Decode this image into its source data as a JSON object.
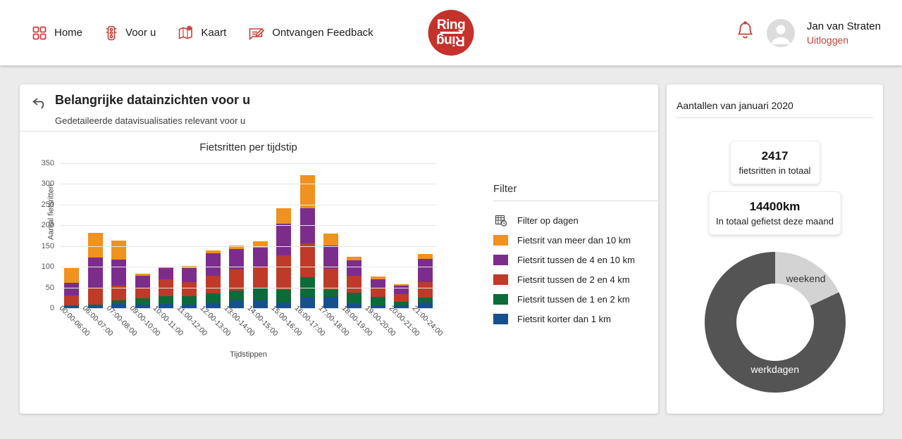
{
  "colors": {
    "accent_red": "#c8413b",
    "logo_red": "#c5312b",
    "donut_weekend": "#d3d3d3",
    "donut_werkdagen": "#545454"
  },
  "header": {
    "nav": [
      {
        "icon": "dashboard-icon",
        "label": "Home"
      },
      {
        "icon": "traffic-light-icon",
        "label": "Voor u"
      },
      {
        "icon": "map-icon",
        "label": "Kaart"
      },
      {
        "icon": "feedback-icon",
        "label": "Ontvangen Feedback"
      }
    ],
    "logo_line1": "Ring",
    "logo_line2": "Ring",
    "user_name": "Jan van Straten",
    "logout_label": "Uitloggen"
  },
  "main": {
    "title": "Belangrijke datainzichten voor u",
    "subtitle": "Gedetaileerde datavisualisaties relevant voor u",
    "filter": {
      "title": "Filter",
      "day_filter_label": "Filter op dagen"
    }
  },
  "sidebar": {
    "title": "Aantallen van januari 2020",
    "stats": [
      {
        "value": "2417",
        "label": "fietsritten in totaal"
      },
      {
        "value": "14400km",
        "label": "In totaal gefietst deze maand"
      }
    ]
  },
  "chart_data": [
    {
      "type": "bar",
      "stacked": true,
      "title": "Fietsritten per tijdstip",
      "xlabel": "Tijdstippen",
      "ylabel": "Aantal fietsritten",
      "ylim": [
        0,
        350
      ],
      "ytick_step": 50,
      "grid": true,
      "legend_position": "right-panel",
      "categories": [
        "00:00-06:00",
        "06:00-07:00",
        "07:00-08:00",
        "09:00-10:00",
        "10:00-11:00",
        "11:00-12:00",
        "12:00-13:00",
        "13:00-14:00",
        "14:00-15:00",
        "15:00-16:00",
        "16:00-17:00",
        "17:00-18:00",
        "18:00-19:00",
        "19:00-20:00",
        "20:00-21:00",
        "21:00-24:00"
      ],
      "series": [
        {
          "name": "Fietsrit korter dan 1 km",
          "color": "#17508f",
          "values": [
            5,
            7,
            10,
            9,
            10,
            9,
            14,
            18,
            19,
            13,
            28,
            28,
            12,
            6,
            7,
            14
          ]
        },
        {
          "name": "Fietsrit tussen de 1 en 2 km",
          "color": "#0c6b38",
          "values": [
            2,
            2,
            9,
            14,
            19,
            20,
            22,
            25,
            28,
            32,
            46,
            16,
            25,
            21,
            8,
            11
          ]
        },
        {
          "name": "Fietsrit tussen de 2 en 4 km",
          "color": "#c03a28",
          "values": [
            23,
            39,
            36,
            27,
            40,
            34,
            43,
            50,
            53,
            82,
            82,
            51,
            42,
            20,
            19,
            38
          ]
        },
        {
          "name": "Fietsrit tussen de 4 en 10 km",
          "color": "#7c2d8c",
          "values": [
            32,
            74,
            62,
            29,
            28,
            34,
            54,
            49,
            47,
            77,
            85,
            56,
            36,
            22,
            21,
            56
          ]
        },
        {
          "name": "Fietsrit van meer dan 10 km",
          "color": "#f0921e",
          "values": [
            35,
            60,
            47,
            5,
            4,
            5,
            6,
            10,
            14,
            38,
            81,
            29,
            9,
            7,
            3,
            12
          ]
        }
      ]
    },
    {
      "type": "pie",
      "donut": true,
      "labels": [
        "weekend",
        "werkdagen"
      ],
      "values": [
        18,
        82
      ],
      "colors": [
        "#d3d3d3",
        "#545454"
      ]
    }
  ]
}
